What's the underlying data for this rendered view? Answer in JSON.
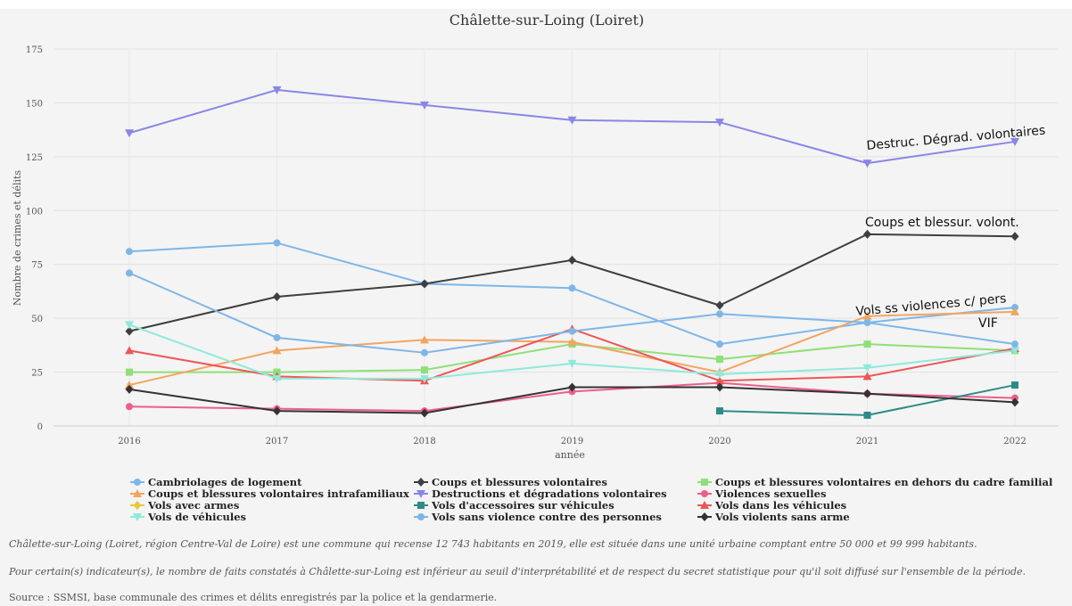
{
  "chart_data": {
    "type": "line",
    "title": "Châlette-sur-Loing (Loiret)",
    "xlabel": "année",
    "ylabel": "Nombre de crimes et délits",
    "x": [
      2016,
      2017,
      2018,
      2019,
      2020,
      2021,
      2022
    ],
    "ylim": [
      0,
      175
    ],
    "yticks": [
      0,
      25,
      50,
      75,
      100,
      125,
      150,
      175
    ],
    "grid": true,
    "legend_position": "bottom",
    "series": [
      {
        "name": "Cambriolages de logement",
        "color": "#7eb6e8",
        "marker": "circle",
        "values": [
          81,
          85,
          66,
          64,
          38,
          48,
          55
        ]
      },
      {
        "name": "Coups et blessures volontaires",
        "color": "#3f3f3f",
        "marker": "diamond",
        "values": [
          44,
          60,
          66,
          77,
          56,
          89,
          88
        ]
      },
      {
        "name": "Coups et blessures volontaires en dehors du cadre familial",
        "color": "#8ee077",
        "marker": "square",
        "values": [
          25,
          25,
          26,
          38,
          31,
          38,
          35
        ]
      },
      {
        "name": "Coups et blessures volontaires intrafamiliaux",
        "color": "#f4a45f",
        "marker": "triangle-up",
        "values": [
          19,
          35,
          40,
          39,
          25,
          51,
          53
        ]
      },
      {
        "name": "Destructions et dégradations volontaires",
        "color": "#8a86e6",
        "marker": "triangle-down",
        "values": [
          136,
          156,
          149,
          142,
          141,
          122,
          132
        ]
      },
      {
        "name": "Violences sexuelles",
        "color": "#ec5f8a",
        "marker": "circle",
        "values": [
          9,
          8,
          7,
          16,
          20,
          15,
          13
        ]
      },
      {
        "name": "Vols avec armes",
        "color": "#e8c73a",
        "marker": "diamond",
        "values": [
          null,
          null,
          null,
          null,
          null,
          null,
          null
        ]
      },
      {
        "name": "Vols d'accessoires sur véhicules",
        "color": "#2e8b87",
        "marker": "square",
        "values": [
          null,
          null,
          null,
          null,
          7,
          5,
          19
        ]
      },
      {
        "name": "Vols dans les véhicules",
        "color": "#ef5656",
        "marker": "triangle-up",
        "values": [
          35,
          23,
          21,
          45,
          21,
          23,
          36
        ]
      },
      {
        "name": "Vols de véhicules",
        "color": "#8eeadb",
        "marker": "triangle-down",
        "values": [
          47,
          22,
          22,
          29,
          24,
          27,
          35
        ]
      },
      {
        "name": "Vols sans violence contre des personnes",
        "color": "#7eb6e8",
        "marker": "circle",
        "values": [
          71,
          41,
          34,
          44,
          52,
          48,
          38
        ]
      },
      {
        "name": "Vols violents sans arme",
        "color": "#333333",
        "marker": "diamond",
        "values": [
          17,
          7,
          6,
          18,
          18,
          15,
          11
        ]
      }
    ],
    "annotations": [
      {
        "text": "Destruc. Dégrad. volontaires",
        "x": 2022,
        "y": 132
      },
      {
        "text": "Coups et blessur. volont.",
        "x": 2022,
        "y": 88
      },
      {
        "text": "Vols ss violences c/ pers",
        "x": 2022,
        "y": 55
      },
      {
        "text": "VIF",
        "x": 2022,
        "y": 53
      }
    ]
  },
  "notes": {
    "line1": "Châlette-sur-Loing (Loiret, région Centre-Val de Loire) est une commune qui recense 12 743 habitants en 2019, elle est située dans une unité urbaine comptant entre 50 000 et 99 999 habitants.",
    "line2": "Pour certain(s) indicateur(s), le nombre de faits constatés à Châlette-sur-Loing est inférieur au seuil d'interprétabilité et de respect du secret statistique pour qu'il soit diffusé sur l'ensemble de la période.",
    "source": "Source : SSMSI, base communale des crimes et délits enregistrés par la police et la gendarmerie."
  }
}
